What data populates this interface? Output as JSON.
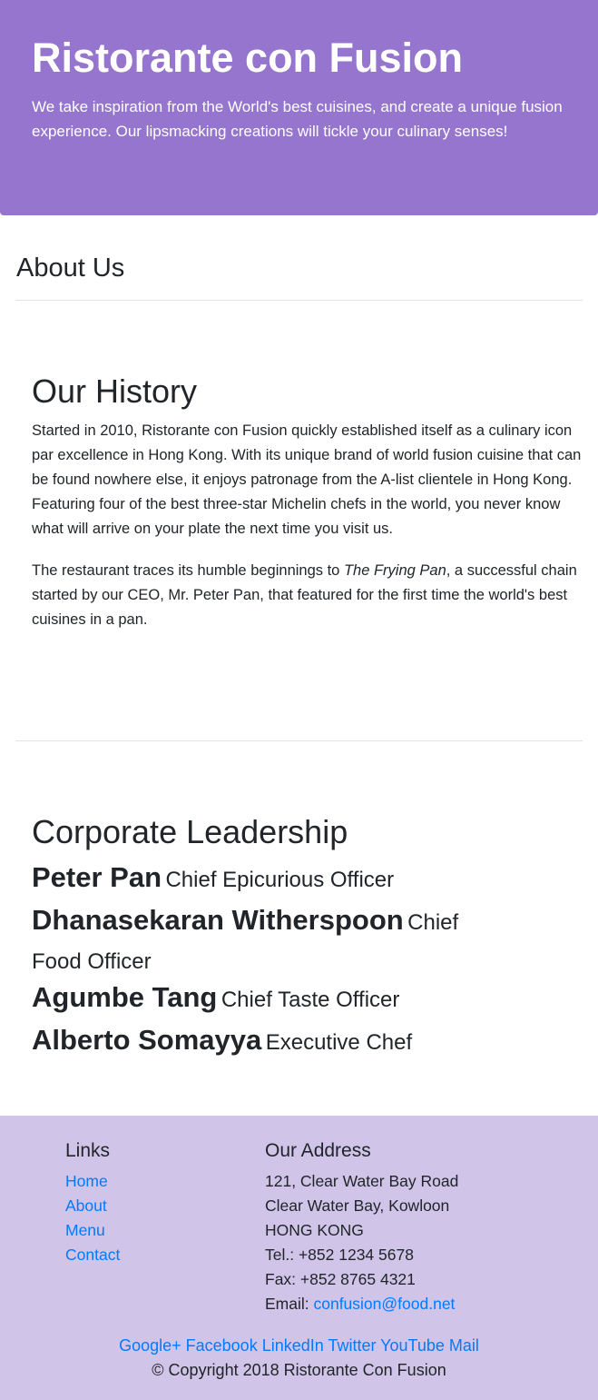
{
  "jumbotron": {
    "title": "Ristorante con Fusion",
    "tagline": "We take inspiration from the World's best cuisines, and create a unique fusion experience. Our lipsmacking creations will tickle your culinary senses!"
  },
  "page": {
    "heading": "About Us"
  },
  "history": {
    "title": "Our History",
    "paragraph1": "Started in 2010, Ristorante con Fusion quickly established itself as a culinary icon par excellence in Hong Kong. With its unique brand of world fusion cuisine that can be found nowhere else, it enjoys patronage from the A-list clientele in Hong Kong. Featuring four of the best three-star Michelin chefs in the world, you never know what will arrive on your plate the next time you visit us.",
    "paragraph2_before": "The restaurant traces its humble beginnings to ",
    "paragraph2_italic": "The Frying Pan",
    "paragraph2_after": ", a successful chain started by our CEO, Mr. Peter Pan, that featured for the first time the world's best cuisines in a pan."
  },
  "leadership": {
    "title": "Corporate Leadership",
    "leaders": [
      {
        "name": "Peter Pan",
        "role": "Chief Epicurious Officer"
      },
      {
        "name": "Dhanasekaran Witherspoon",
        "role": "Chief Food Officer"
      },
      {
        "name": "Agumbe Tang",
        "role": "Chief Taste Officer"
      },
      {
        "name": "Alberto Somayya",
        "role": "Executive Chef"
      }
    ]
  },
  "footer": {
    "links_heading": "Links",
    "links": [
      "Home",
      "About",
      "Menu",
      "Contact"
    ],
    "address_heading": "Our Address",
    "address": {
      "line1": "121, Clear Water Bay Road",
      "line2": "Clear Water Bay, Kowloon",
      "line3": "HONG KONG",
      "tel": "Tel.: +852 1234 5678",
      "fax": "Fax: +852 8765 4321",
      "email_label": "Email: ",
      "email": "confusion@food.net"
    },
    "social": [
      "Google+",
      "Facebook",
      "LinkedIn",
      "Twitter",
      "YouTube",
      "Mail"
    ],
    "copyright": "© Copyright 2018 Ristorante Con Fusion"
  },
  "colors": {
    "jumbotron_bg": "#9575cd",
    "footer_bg": "#d1c4e9",
    "link": "#007bff"
  }
}
